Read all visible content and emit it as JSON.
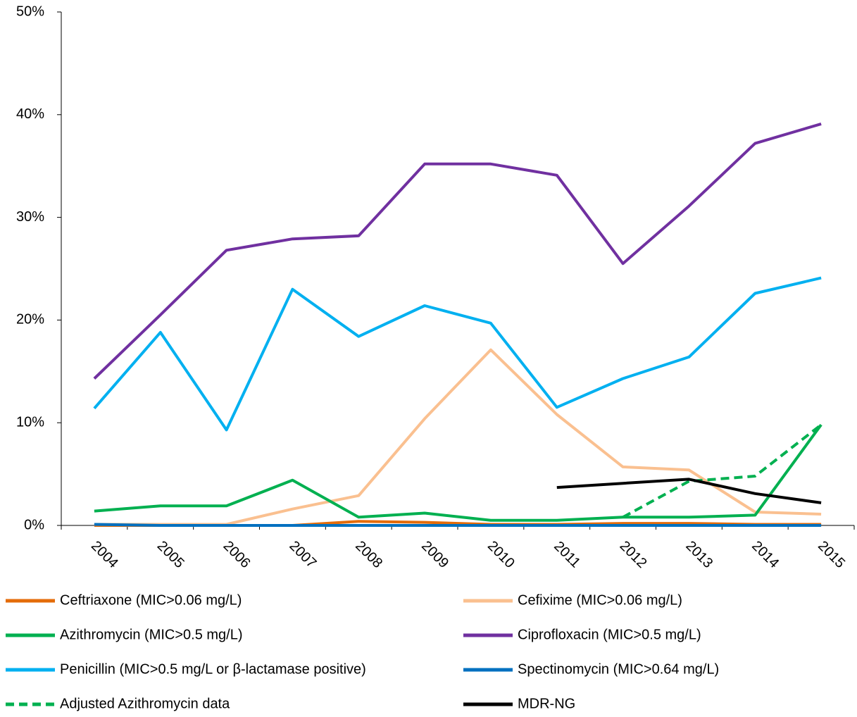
{
  "chart_data": {
    "type": "line",
    "categories": [
      "2004",
      "2005",
      "2006",
      "2007",
      "2008",
      "2009",
      "2010",
      "2011",
      "2012",
      "2013",
      "2014",
      "2015"
    ],
    "ylim": [
      0,
      50
    ],
    "yticks": [
      {
        "value": 0,
        "label": "0%"
      },
      {
        "value": 10,
        "label": "10%"
      },
      {
        "value": 20,
        "label": "20%"
      },
      {
        "value": 30,
        "label": "30%"
      },
      {
        "value": 40,
        "label": "40%"
      },
      {
        "value": 50,
        "label": "50%"
      }
    ],
    "grid": false,
    "series": [
      {
        "name": "Ceftriaxone (MIC>0.06 mg/L)",
        "color": "#e46c0a",
        "values": [
          0,
          0,
          0,
          0,
          0.4,
          0.3,
          0.1,
          0.1,
          0.2,
          0.2,
          0.1,
          0.1
        ]
      },
      {
        "name": "Cefixime (MIC>0.06 mg/L)",
        "color": "#fac090",
        "values": [
          0.1,
          0.1,
          0.1,
          1.6,
          2.9,
          10.4,
          17.1,
          10.8,
          5.7,
          5.4,
          1.3,
          1.1
        ]
      },
      {
        "name": "Azithromycin (MIC>0.5 mg/L)",
        "color": "#00b050",
        "values": [
          1.4,
          1.9,
          1.9,
          4.4,
          0.8,
          1.2,
          0.5,
          0.5,
          0.8,
          0.8,
          1.0,
          9.8
        ]
      },
      {
        "name": "Ciprofloxacin (MIC>0.5 mg/L)",
        "color": "#7030a0",
        "values": [
          14.3,
          20.5,
          26.8,
          27.9,
          28.2,
          35.2,
          35.2,
          34.1,
          25.5,
          31.1,
          37.2,
          39.1
        ]
      },
      {
        "name": "Penicillin (MIC>0.5 mg/L or β-lactamase positive)",
        "color": "#00b0f0",
        "values": [
          11.4,
          18.8,
          9.3,
          23.0,
          18.4,
          21.4,
          19.7,
          11.5,
          14.3,
          16.4,
          22.6,
          24.1
        ]
      },
      {
        "name": "Spectinomycin (MIC>0.64 mg/L)",
        "color": "#0070c0",
        "values": [
          0.1,
          0,
          0,
          0,
          0,
          0,
          0,
          0,
          0,
          0,
          0,
          0
        ]
      },
      {
        "name": "Adjusted Azithromycin data",
        "color": "#00b050",
        "style": "dashed",
        "values": [
          null,
          null,
          null,
          null,
          null,
          null,
          null,
          null,
          0.8,
          4.3,
          4.8,
          9.8
        ]
      },
      {
        "name": "MDR-NG",
        "color": "#000000",
        "values": [
          null,
          null,
          null,
          null,
          null,
          null,
          null,
          3.7,
          4.1,
          4.5,
          3.1,
          2.2
        ]
      }
    ]
  }
}
